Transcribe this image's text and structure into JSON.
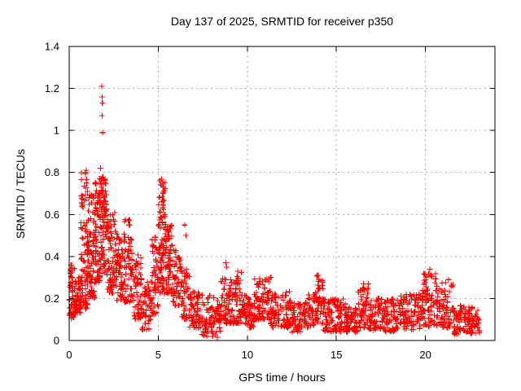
{
  "title": "Day 137 of 2025, SRMTID for receiver p350",
  "chart_data": {
    "type": "scatter",
    "title": "Day 137 of 2025, SRMTID for receiver p350",
    "xlabel": "GPS time / hours",
    "ylabel": "SRMTID / TECUs",
    "xlim": [
      0,
      23.9
    ],
    "ylim": [
      0,
      1.4
    ],
    "xticks": [
      0,
      5,
      10,
      15,
      20
    ],
    "xtick_labels": [
      "0",
      "5",
      "10",
      "15",
      "20"
    ],
    "yticks": [
      0,
      0.2,
      0.4,
      0.6,
      0.8,
      1.0,
      1.2,
      1.4
    ],
    "ytick_labels": [
      "0",
      "0.2",
      "0.4",
      "0.6",
      "0.8",
      "1",
      "1.2",
      "1.4"
    ],
    "grid": true,
    "legend": "none",
    "marker": "plus",
    "marker_color": "#ff0000",
    "grid_color": "#a9a9a9",
    "border_color": "#000000",
    "seed": 137,
    "density_segments_comment": "each segment = [t_start_hr, t_end_hr, n_points, y_min, y_max, skew_k] describing the dense scatter envelope read from the plot",
    "density_segments": [
      [
        0.0,
        0.35,
        55,
        0.1,
        0.36,
        1.2
      ],
      [
        0.35,
        0.65,
        45,
        0.13,
        0.3,
        1.2
      ],
      [
        0.65,
        1.05,
        85,
        0.15,
        0.8,
        1.5
      ],
      [
        1.05,
        1.45,
        75,
        0.2,
        0.7,
        1.3
      ],
      [
        1.45,
        1.8,
        75,
        0.25,
        0.78,
        1.0
      ],
      [
        1.8,
        2.1,
        65,
        0.3,
        0.78,
        0.9
      ],
      [
        2.1,
        2.6,
        75,
        0.22,
        0.62,
        1.3
      ],
      [
        2.6,
        3.1,
        65,
        0.18,
        0.52,
        1.3
      ],
      [
        3.1,
        3.55,
        55,
        0.18,
        0.58,
        1.4
      ],
      [
        3.55,
        4.05,
        55,
        0.1,
        0.42,
        1.4
      ],
      [
        4.05,
        4.65,
        50,
        0.05,
        0.28,
        1.4
      ],
      [
        4.65,
        5.0,
        45,
        0.12,
        0.5,
        1.2
      ],
      [
        5.0,
        5.4,
        80,
        0.22,
        0.77,
        1.0
      ],
      [
        5.4,
        5.8,
        60,
        0.22,
        0.56,
        1.2
      ],
      [
        5.8,
        6.25,
        50,
        0.16,
        0.45,
        1.3
      ],
      [
        6.25,
        6.75,
        45,
        0.1,
        0.34,
        1.3
      ],
      [
        6.75,
        7.5,
        65,
        0.06,
        0.24,
        1.2
      ],
      [
        7.5,
        8.5,
        75,
        0.02,
        0.22,
        1.2
      ],
      [
        8.5,
        9.2,
        65,
        0.08,
        0.3,
        1.3
      ],
      [
        9.2,
        9.7,
        50,
        0.08,
        0.33,
        1.3
      ],
      [
        9.7,
        10.4,
        60,
        0.06,
        0.22,
        1.2
      ],
      [
        10.4,
        11.3,
        80,
        0.1,
        0.3,
        1.3
      ],
      [
        11.3,
        12.4,
        90,
        0.06,
        0.24,
        1.3
      ],
      [
        12.4,
        13.3,
        70,
        0.04,
        0.18,
        1.2
      ],
      [
        13.3,
        13.8,
        40,
        0.06,
        0.22,
        1.2
      ],
      [
        13.8,
        14.25,
        45,
        0.08,
        0.31,
        1.2
      ],
      [
        14.25,
        15.5,
        100,
        0.04,
        0.2,
        1.2
      ],
      [
        15.5,
        16.2,
        60,
        0.04,
        0.16,
        1.2
      ],
      [
        16.2,
        16.8,
        55,
        0.06,
        0.27,
        1.3
      ],
      [
        16.8,
        18.5,
        130,
        0.04,
        0.2,
        1.2
      ],
      [
        18.5,
        19.8,
        100,
        0.05,
        0.22,
        1.3
      ],
      [
        19.8,
        20.6,
        70,
        0.06,
        0.32,
        1.2
      ],
      [
        20.6,
        21.6,
        80,
        0.06,
        0.28,
        1.3
      ],
      [
        21.6,
        23.05,
        110,
        0.03,
        0.17,
        1.2
      ]
    ],
    "outlier_points_comment": "individually visible extreme points [hour, TECU] read from the plot",
    "outlier_points": [
      [
        1.83,
        1.21
      ],
      [
        1.85,
        1.16
      ],
      [
        1.86,
        1.13
      ],
      [
        1.84,
        1.07
      ],
      [
        1.88,
        0.99
      ],
      [
        1.75,
        0.82
      ],
      [
        0.95,
        0.81
      ],
      [
        1.7,
        0.77
      ],
      [
        5.08,
        0.76
      ],
      [
        5.15,
        0.74
      ],
      [
        3.32,
        0.57
      ],
      [
        3.36,
        0.55
      ],
      [
        6.48,
        0.55
      ],
      [
        6.55,
        0.5
      ],
      [
        8.8,
        0.37
      ],
      [
        8.84,
        0.35
      ],
      [
        9.45,
        0.33
      ],
      [
        11.32,
        0.3
      ],
      [
        13.98,
        0.31
      ],
      [
        14.03,
        0.29
      ],
      [
        16.52,
        0.27
      ],
      [
        20.25,
        0.34
      ],
      [
        20.3,
        0.31
      ],
      [
        21.3,
        0.29
      ],
      [
        7.45,
        0.03
      ],
      [
        7.6,
        0.04
      ],
      [
        8.05,
        0.02
      ],
      [
        8.32,
        0.015
      ],
      [
        0.06,
        0.34
      ],
      [
        0.1,
        0.32
      ]
    ]
  }
}
